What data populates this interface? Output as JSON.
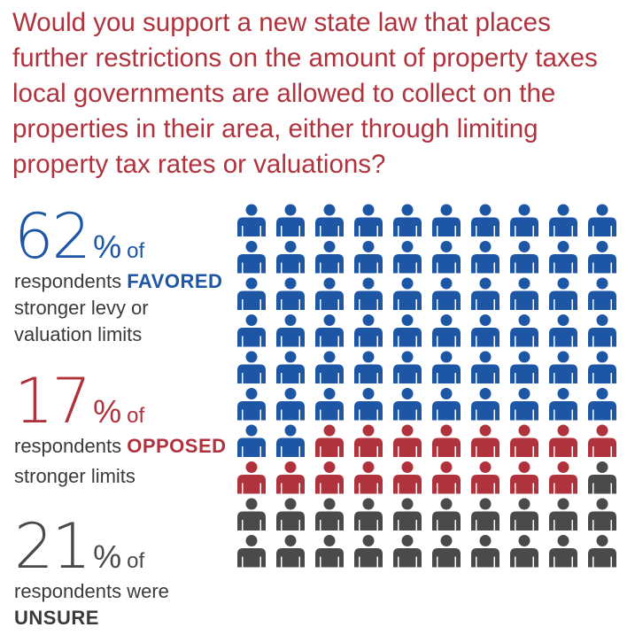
{
  "question": "Would you support a new state law that places further restrictions on the amount of property taxes local governments are allowed to collect on the properties in their area, either through limiting property tax rates or valuations?",
  "stats": [
    {
      "id": "favored",
      "value": "62",
      "percent_sign": "%",
      "of_word": "of",
      "line1_prefix": "respondents ",
      "keyword": "FAVORED",
      "lines": [
        "stronger levy or",
        "valuation limits"
      ],
      "color": "#1c56a5"
    },
    {
      "id": "opposed",
      "value": "17",
      "percent_sign": "%",
      "of_word": "of",
      "line1_prefix": "respondents ",
      "keyword": "OPPOSED",
      "lines": [
        "stronger limits"
      ],
      "color": "#b0323d"
    },
    {
      "id": "unsure",
      "value": "21",
      "percent_sign": "%",
      "of_word": "of",
      "line1_prefix": "respondents were",
      "keyword": "UNSURE",
      "color": "#4a4a4a"
    }
  ],
  "chart_data": {
    "type": "pictograph",
    "total_icons": 100,
    "columns": 10,
    "rows": 10,
    "fill_order": "row-major from top-left",
    "series": [
      {
        "name": "FAVORED",
        "value": 62,
        "color": "#1c56a5"
      },
      {
        "name": "OPPOSED",
        "value": 17,
        "color": "#b0323d"
      },
      {
        "name": "UNSURE",
        "value": 21,
        "color": "#4a4a4a"
      }
    ]
  }
}
